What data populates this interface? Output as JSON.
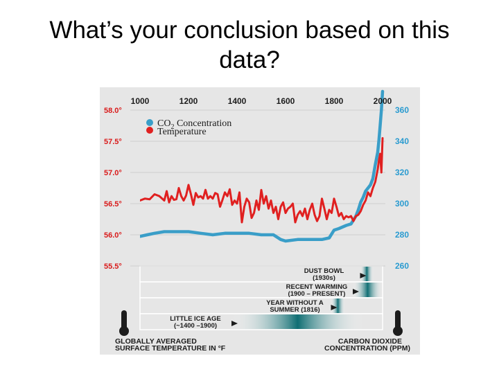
{
  "slide": {
    "title_line1": "What’s your conclusion based on this",
    "title_line2": "data?"
  },
  "chart_data": {
    "type": "line",
    "x_ticks": [
      "1000",
      "1200",
      "1400",
      "1600",
      "1800",
      "2000"
    ],
    "xlim": [
      1000,
      2000
    ],
    "y_left": {
      "ticks": [
        "58.0°",
        "57.5°",
        "57.0°",
        "56.5°",
        "56.0°",
        "55.5°"
      ],
      "range": [
        55.5,
        58.0
      ],
      "label_line1": "GLOBALLY AVERAGED",
      "label_line2": "SURFACE TEMPERATURE IN °F"
    },
    "y_right": {
      "ticks": [
        "360",
        "340",
        "320",
        "300",
        "280",
        "260"
      ],
      "range": [
        260,
        360
      ],
      "label_line1": "CARBON DIOXIDE",
      "label_line2": "CONCENTRATION (PPM)"
    },
    "legend": {
      "placement": "top-left",
      "co2_prefix": "CO",
      "co2_sub": "2",
      "co2_suffix": " Concentration",
      "temperature": "Temperature"
    },
    "colors": {
      "co2": "#3a9ec8",
      "temperature": "#e02020",
      "label_red": "#d91a1a",
      "label_blue": "#2a9bd0",
      "band": "#0f6e73",
      "background": "#e6e6e6"
    },
    "series": [
      {
        "key": "co2",
        "axis": "right",
        "x": [
          1000,
          1030,
          1060,
          1100,
          1130,
          1170,
          1200,
          1250,
          1300,
          1350,
          1400,
          1450,
          1500,
          1550,
          1580,
          1600,
          1650,
          1700,
          1750,
          1780,
          1800,
          1820,
          1850,
          1870,
          1890,
          1900,
          1910,
          1920,
          1930,
          1940,
          1950,
          1960,
          1970,
          1980,
          1985,
          1990,
          1995,
          2000
        ],
        "values": [
          279,
          280,
          281,
          282,
          282,
          282,
          282,
          281,
          280,
          281,
          281,
          281,
          280,
          280,
          277,
          276,
          277,
          277,
          277,
          278,
          283,
          284,
          286,
          287,
          292,
          296,
          301,
          304,
          308,
          310,
          312,
          316,
          325,
          333,
          341,
          350,
          360,
          372
        ]
      },
      {
        "key": "temperature",
        "axis": "left",
        "x": [
          1000,
          1020,
          1040,
          1060,
          1080,
          1100,
          1110,
          1120,
          1130,
          1140,
          1150,
          1160,
          1170,
          1180,
          1190,
          1200,
          1210,
          1220,
          1230,
          1240,
          1250,
          1260,
          1270,
          1280,
          1290,
          1300,
          1310,
          1320,
          1330,
          1340,
          1350,
          1360,
          1370,
          1380,
          1390,
          1400,
          1410,
          1420,
          1430,
          1440,
          1450,
          1460,
          1470,
          1480,
          1490,
          1500,
          1510,
          1520,
          1530,
          1540,
          1550,
          1560,
          1570,
          1580,
          1590,
          1600,
          1610,
          1620,
          1630,
          1640,
          1650,
          1660,
          1670,
          1680,
          1690,
          1700,
          1710,
          1720,
          1730,
          1740,
          1750,
          1760,
          1770,
          1780,
          1790,
          1800,
          1810,
          1820,
          1830,
          1840,
          1850,
          1860,
          1870,
          1880,
          1890,
          1900,
          1910,
          1920,
          1930,
          1940,
          1950,
          1960,
          1970,
          1980,
          1985,
          1990,
          1995,
          2000
        ],
        "values": [
          56.55,
          56.58,
          56.57,
          56.65,
          56.62,
          56.55,
          56.7,
          56.52,
          56.62,
          56.56,
          56.57,
          56.75,
          56.62,
          56.55,
          56.63,
          56.8,
          56.65,
          56.48,
          56.67,
          56.6,
          56.62,
          56.58,
          56.72,
          56.58,
          56.62,
          56.58,
          56.67,
          56.65,
          56.45,
          56.56,
          56.68,
          56.62,
          56.73,
          56.48,
          56.55,
          56.5,
          56.68,
          56.2,
          56.45,
          56.58,
          56.52,
          56.27,
          56.35,
          56.55,
          56.4,
          56.72,
          56.5,
          56.62,
          56.42,
          56.55,
          56.35,
          56.45,
          56.25,
          56.45,
          56.52,
          56.35,
          56.42,
          56.45,
          56.5,
          56.2,
          56.32,
          56.38,
          56.3,
          56.42,
          56.25,
          56.4,
          56.5,
          56.32,
          56.22,
          56.3,
          56.58,
          56.42,
          56.25,
          56.4,
          56.35,
          56.58,
          56.45,
          56.3,
          56.35,
          56.25,
          56.3,
          56.28,
          56.3,
          56.22,
          56.3,
          56.32,
          56.38,
          56.48,
          56.55,
          56.68,
          56.62,
          56.75,
          56.85,
          57.05,
          57.2,
          57.3,
          57.0,
          57.55
        ]
      }
    ],
    "events": [
      {
        "line1": "DUST BOWL",
        "line2": "(1930s)",
        "x_start": 1930,
        "x_end": 1940
      },
      {
        "line1": "RECENT WARMING",
        "line2": "(1900 – PRESENT)",
        "x_start": 1900,
        "x_end": 2000
      },
      {
        "line1": "YEAR WITHOUT A",
        "line2": "SUMMER (1816)",
        "x_start": 1810,
        "x_end": 1822
      },
      {
        "line1": "LITTLE ICE AGE",
        "line2": "(~1400 –1900)",
        "x_start": 1400,
        "x_end": 1900
      }
    ]
  }
}
